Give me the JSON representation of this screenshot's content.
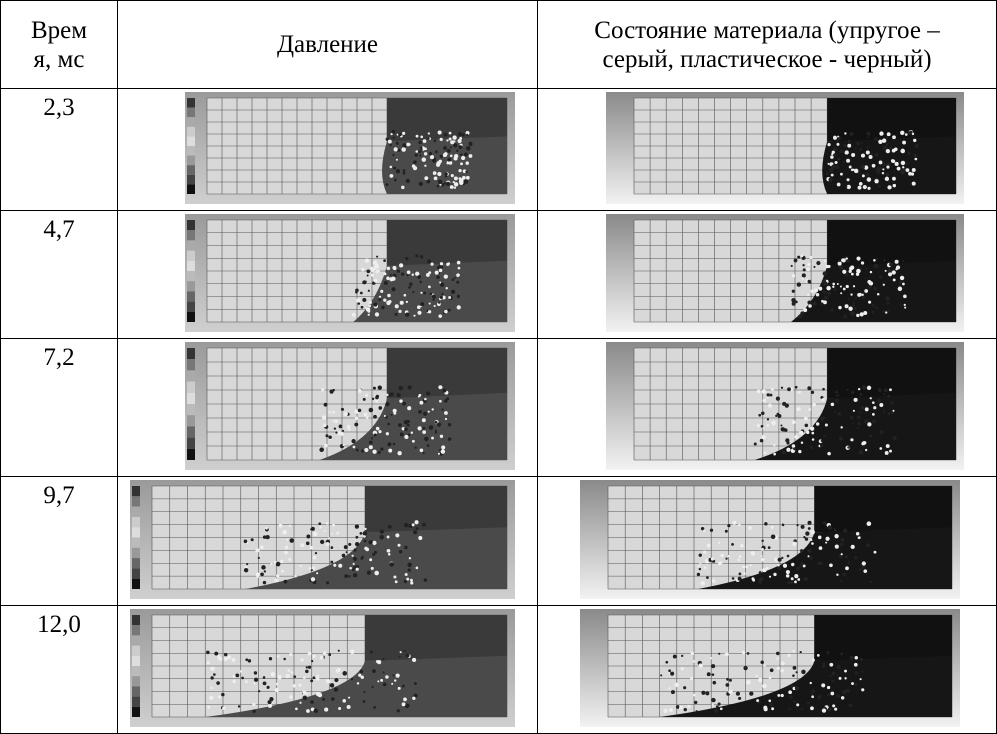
{
  "table": {
    "header": [
      [
        "Врем",
        "я, мс"
      ],
      "Давление",
      [
        "Состояние материала (упругое –",
        "серый, пластическое - черный)"
      ]
    ],
    "rows": [
      "2,3",
      "4,7",
      "7,2",
      "9,7",
      "12,0"
    ]
  }
}
